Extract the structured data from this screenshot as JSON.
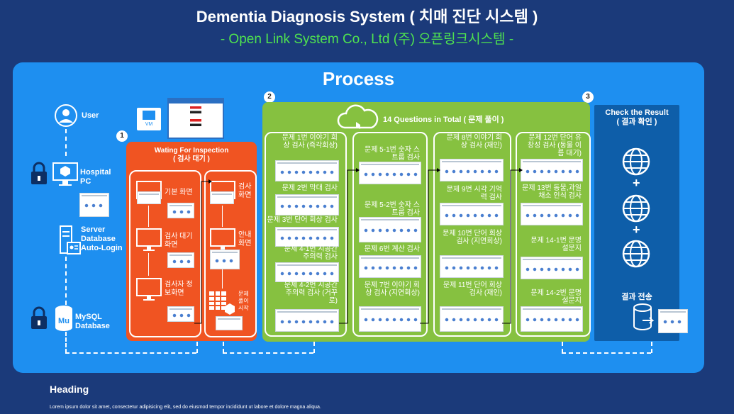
{
  "header": {
    "title": "Dementia Diagnosis System ( 치매 진단 시스템 )",
    "subtitle": "- Open Link System Co., Ltd (주) 오픈링크시스템 -"
  },
  "process": {
    "title": "Process",
    "step_numbers": [
      "1",
      "2",
      "3"
    ]
  },
  "left_column": {
    "user": "User",
    "hospital_pc": "Hospital PC",
    "server_db": "Server Database Auto-Login",
    "mysql": "MySQL Database",
    "vm_label": "VM"
  },
  "waiting": {
    "title": "Wating For Inspection",
    "title_ko": "( 검사 대기 )",
    "screens_left": [
      "기본 화면",
      "검사 대기화면",
      "검사자 정보화면"
    ],
    "screens_right": [
      "검사 화면",
      "안내 화면",
      "문제 풀이 시작"
    ]
  },
  "questions": {
    "title": "14 Questions in Total ( 문제 풀이 )",
    "col1": [
      "문제 1번 이야기 회상 검사 (즉각회상)",
      "문제 2번 막대 검사",
      "문제 3번 단어 회상 검사",
      "문제 4-1번 시공간 주의력 검사",
      "문제 4-2번 시공간 주의력 검사 (거꾸로)"
    ],
    "col2": [
      "문제 5-1번 숫자 스트룹 검사",
      "문제 5-2번 숫자 스트룹 검사",
      "문제 6번 계산 검사",
      "문제 7번 이야기 회상 검사 (지연회상)"
    ],
    "col3": [
      "문제 8번 이야기 회상 검사 (재인)",
      "문제 9번 시각 기억력 검사",
      "문제 10번 단어 회상 검사 (지연회상)",
      "문제 11번 단어 회상 검사 (재인)"
    ],
    "col4": [
      "문제 12번 단어 유창성 검사 (동물 이름 대기)",
      "문제 13번 동물,과일 채소 인식 검사",
      "문제 14-1번 문명 설문지",
      "문제 14-2번 문명 설문지"
    ]
  },
  "result": {
    "title": "Check the Result",
    "title_ko": "( 결과 확인 )",
    "transfer": "결과 전송",
    "plus": "+"
  },
  "footer": {
    "heading": "Heading",
    "body": "Lorem ipsum dolor sit amet, consectetur adipisicing elit, sed do eiusmod tempor incididunt ut labore et dolore magna aliqua."
  },
  "colors": {
    "background": "#1b3a7a",
    "panel": "#1e8ff0",
    "waiting": "#f05422",
    "questions": "#86c140",
    "result": "#0e5ea9",
    "subtitle": "#4fe34f"
  }
}
